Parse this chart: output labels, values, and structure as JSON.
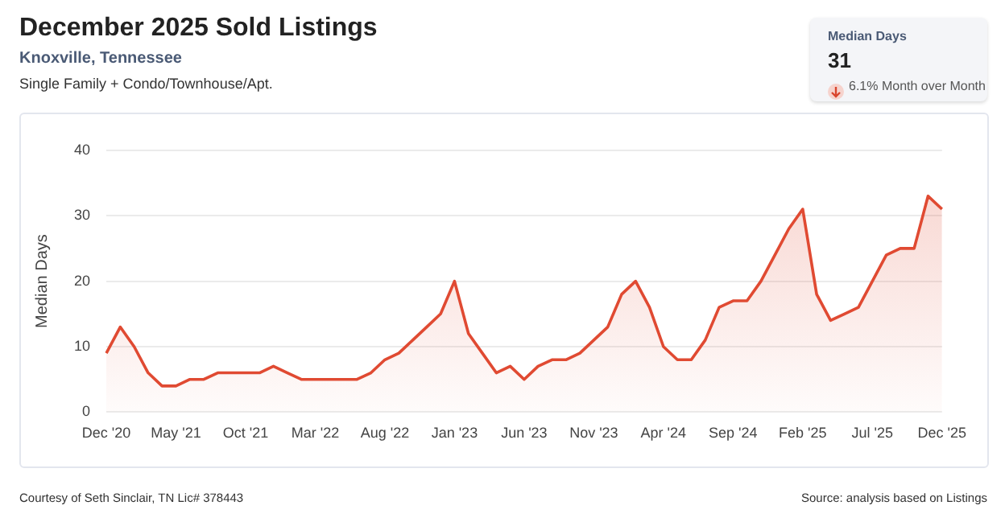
{
  "chart_data": {
    "type": "area",
    "title": "December 2025 Sold Listings",
    "subtitle": "Knoxville, Tennessee",
    "ylabel": "Median Days",
    "annotations": [
      "Single Family + Condo/Townhouse/Apt.",
      "Median Days",
      "31",
      "6.1% Month over Month",
      "Courtesy of Seth Sinclair, TN Lic# 378443",
      "Source: analysis based on Listings"
    ],
    "categories": [
      "Dec '20",
      null,
      null,
      null,
      null,
      "May '21",
      null,
      null,
      null,
      null,
      "Oct '21",
      null,
      null,
      null,
      null,
      "Mar '22",
      null,
      null,
      null,
      null,
      "Aug '22",
      null,
      null,
      null,
      null,
      "Jan '23",
      null,
      null,
      null,
      null,
      "Jun '23",
      null,
      null,
      null,
      null,
      "Nov '23",
      null,
      null,
      null,
      null,
      "Apr '24",
      null,
      null,
      null,
      null,
      "Sep '24",
      null,
      null,
      null,
      null,
      "Feb '25",
      null,
      null,
      null,
      null,
      "Jul '25",
      null,
      null,
      null,
      null,
      "Dec '25"
    ],
    "series": [
      {
        "color": "#e04a32",
        "values": [
          9,
          13,
          10,
          6,
          4,
          4,
          5,
          5,
          6,
          6,
          6,
          6,
          7,
          6,
          5,
          5,
          5,
          5,
          5,
          6,
          8,
          9,
          11,
          13,
          15,
          20,
          12,
          9,
          6,
          7,
          5,
          7,
          8,
          8,
          9,
          11,
          13,
          18,
          20,
          16,
          10,
          8,
          8,
          11,
          16,
          17,
          17,
          20,
          24,
          28,
          31,
          18,
          14,
          15,
          16,
          20,
          24,
          25,
          25,
          33,
          31
        ]
      }
    ],
    "ylim": [
      0,
      40
    ],
    "yticks": [
      0,
      10,
      20,
      30,
      40
    ],
    "grid": "y",
    "legend": false,
    "marker": "none"
  }
}
